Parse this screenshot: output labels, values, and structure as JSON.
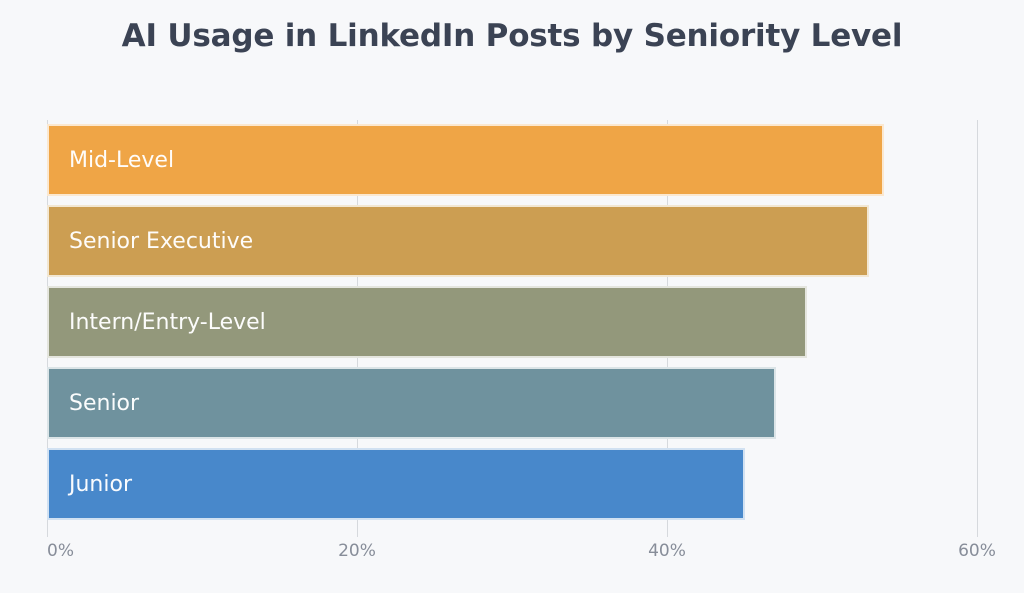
{
  "page": {
    "background_color": "#f7f8fa"
  },
  "chart_data": {
    "type": "bar",
    "orientation": "horizontal",
    "title": "AI Usage in LinkedIn Posts by Seniority Level",
    "categories": [
      "Mid-Level",
      "Senior Executive",
      "Intern/Entry-Level",
      "Senior",
      "Junior"
    ],
    "values": [
      54,
      53,
      49,
      47,
      45
    ],
    "value_unit": "%",
    "bar_colors": [
      "#efa546",
      "#cc9e52",
      "#93987b",
      "#6f929e",
      "#4888cb"
    ],
    "bar_label_position": "inside-left",
    "bar_label_color": "#ffffff",
    "x_tick_labels": [
      "0%",
      "20%",
      "40%",
      "60%"
    ],
    "x_tick_values": [
      0,
      20,
      40,
      60
    ],
    "xlim": [
      0,
      62
    ],
    "xlabel": "",
    "ylabel": "",
    "grid": true,
    "gridline_color": "#d6d9dd",
    "legend": false,
    "title_color": "#3b4354",
    "tick_label_color": "#878d99"
  }
}
